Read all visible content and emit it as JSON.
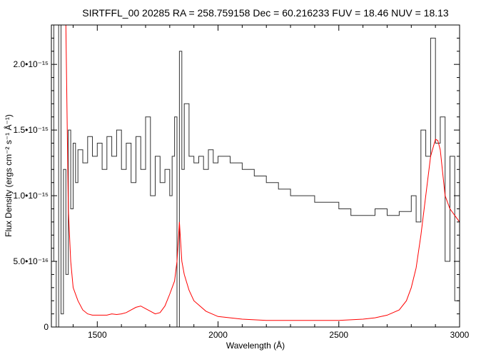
{
  "chart_data": {
    "type": "line",
    "title": "SIRTFFL_00 20285 RA = 258.759158 Dec =  60.216233 FUV = 18.46 NUV = 18.13",
    "xlabel": "Wavelength (Å)",
    "ylabel": "Flux Density (ergs cm⁻² s⁻¹ Å⁻¹)",
    "xlim": [
      1310,
      3000
    ],
    "ylim": [
      0,
      2.3e-15
    ],
    "x_ticks": [
      1500,
      2000,
      2500,
      3000
    ],
    "x_tick_labels": [
      "1500",
      "2000",
      "2500",
      "3000"
    ],
    "y_ticks": [
      0,
      5e-16,
      1e-15,
      1.5e-15,
      2e-15
    ],
    "y_tick_labels": [
      "0",
      "5.0•10⁻¹⁶",
      "1.0•10⁻¹⁵",
      "1.5•10⁻¹⁵",
      "2.0•10⁻¹⁵"
    ],
    "grid": false,
    "colors": {
      "flux": "#333333",
      "error": "#ff0000",
      "zero_line": "#b0b000"
    },
    "series": [
      {
        "role": "flux",
        "x": [
          1310,
          1320,
          1330,
          1340,
          1350,
          1360,
          1370,
          1380,
          1390,
          1400,
          1410,
          1420,
          1440,
          1460,
          1480,
          1500,
          1520,
          1540,
          1560,
          1580,
          1600,
          1620,
          1640,
          1660,
          1680,
          1700,
          1720,
          1740,
          1760,
          1780,
          1800,
          1810,
          1820,
          1830,
          1840,
          1850,
          1860,
          1880,
          1900,
          1920,
          1940,
          1960,
          1980,
          2000,
          2050,
          2100,
          2150,
          2200,
          2250,
          2300,
          2350,
          2400,
          2450,
          2500,
          2550,
          2600,
          2650,
          2700,
          2750,
          2800,
          2820,
          2840,
          2860,
          2880,
          2900,
          2920,
          2940,
          2960,
          2980,
          3000
        ],
        "y": [
          2.3e-15,
          5e-16,
          0,
          2.3e-15,
          1e-16,
          1.2e-15,
          4e-16,
          1.5e-15,
          9e-16,
          1.4e-15,
          1.1e-15,
          1.35e-15,
          1.25e-15,
          1.45e-15,
          1.3e-15,
          1.4e-15,
          1.2e-15,
          1.45e-15,
          1.3e-15,
          1.5e-15,
          1.2e-15,
          1.4e-15,
          1.1e-15,
          1.45e-15,
          1.2e-15,
          1.6e-15,
          1e-15,
          1.3e-15,
          1.1e-15,
          1.2e-15,
          1e-15,
          1.3e-15,
          1.6e-15,
          0,
          2.1e-15,
          1.2e-15,
          1.7e-15,
          1.3e-15,
          1.25e-15,
          1.3e-15,
          1.2e-15,
          1.35e-15,
          1.25e-15,
          1.3e-15,
          1.25e-15,
          1.2e-15,
          1.15e-15,
          1.1e-15,
          1.05e-15,
          1e-15,
          1e-15,
          9.5e-16,
          9.5e-16,
          9e-16,
          8.5e-16,
          8.5e-16,
          9e-16,
          8.5e-16,
          8.8e-16,
          1e-15,
          8e-16,
          1.5e-15,
          1.3e-15,
          2.2e-15,
          1.4e-15,
          1.6e-15,
          5e-16,
          1.3e-15,
          2e-16,
          7e-16
        ]
      },
      {
        "role": "error",
        "x": [
          1310,
          1320,
          1330,
          1340,
          1350,
          1360,
          1370,
          1380,
          1390,
          1400,
          1420,
          1440,
          1460,
          1480,
          1500,
          1520,
          1540,
          1560,
          1580,
          1600,
          1620,
          1640,
          1660,
          1680,
          1700,
          1720,
          1740,
          1760,
          1780,
          1800,
          1810,
          1820,
          1830,
          1840,
          1850,
          1860,
          1880,
          1900,
          1950,
          2000,
          2100,
          2200,
          2300,
          2400,
          2500,
          2600,
          2650,
          2700,
          2750,
          2780,
          2800,
          2820,
          2840,
          2860,
          2880,
          2900,
          2910,
          2920,
          2940,
          2960,
          2980,
          3000
        ],
        "y": [
          2.3e-15,
          2.3e-15,
          2.3e-15,
          2.3e-15,
          2.3e-15,
          2.3e-15,
          2.3e-15,
          9e-16,
          5e-16,
          3e-16,
          2e-16,
          1.3e-16,
          1e-16,
          9e-17,
          9e-17,
          9e-17,
          9e-17,
          1e-16,
          9.5e-17,
          1e-16,
          1.1e-16,
          1.3e-16,
          1.5e-16,
          1.6e-16,
          1.4e-16,
          1.2e-16,
          1e-16,
          1.1e-16,
          1.6e-16,
          2.5e-16,
          3e-16,
          3.5e-16,
          5e-16,
          8e-16,
          5e-16,
          4e-16,
          2.8e-16,
          2e-16,
          1.2e-16,
          8e-17,
          6e-17,
          5e-17,
          5e-17,
          5e-17,
          5e-17,
          6e-17,
          7e-17,
          9e-17,
          1.3e-16,
          2e-16,
          3e-16,
          4.5e-16,
          7e-16,
          1e-15,
          1.3e-15,
          1.43e-15,
          1.42e-15,
          1.35e-15,
          1e-15,
          9e-16,
          8.5e-16,
          8e-16
        ]
      }
    ]
  }
}
